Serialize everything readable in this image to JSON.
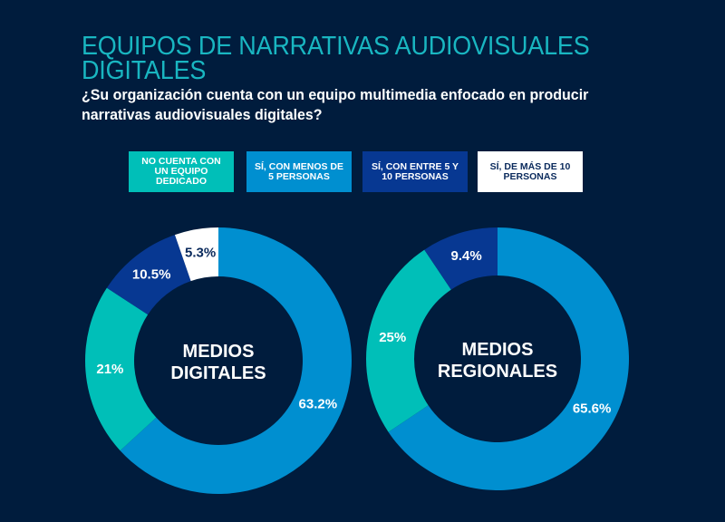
{
  "header": {
    "title": "EQUIPOS DE NARRATIVAS AUDIOVISUALES DIGITALES",
    "subtitle": "¿Su organización cuenta con un equipo multimedia enfocado en producir narrativas audiovisuales digitales?"
  },
  "colors": {
    "background": "#001c3d",
    "title": "#19b6c1",
    "no_team": "#00bfb8",
    "less_than_5": "#008fd0",
    "between_5_10": "#073892",
    "more_than_10": "#ffffff"
  },
  "legend": [
    {
      "key": "no_team",
      "label": "NO CUENTA CON UN EQUIPO DEDICADO",
      "text_color": "#ffffff"
    },
    {
      "key": "less_than_5",
      "label": "SÍ, CON MENOS DE 5 PERSONAS",
      "text_color": "#ffffff"
    },
    {
      "key": "between_5_10",
      "label": "SÍ, CON ENTRE 5 Y 10 PERSONAS",
      "text_color": "#ffffff"
    },
    {
      "key": "more_than_10",
      "label": "SÍ, DE MÁS DE 10 PERSONAS",
      "text_color": "#0a2a5c"
    }
  ],
  "chart_data": [
    {
      "type": "pie",
      "variant": "donut",
      "title": "MEDIOS DIGITALES",
      "center_label": [
        "MEDIOS",
        "DIGITALES"
      ],
      "start": "12 o'clock, clockwise",
      "slices": [
        {
          "key": "less_than_5",
          "label": "Sí, con menos de 5 personas",
          "value": 63.2,
          "display": "63.2%"
        },
        {
          "key": "no_team",
          "label": "No cuenta con un equipo dedicado",
          "value": 21,
          "display": "21%"
        },
        {
          "key": "between_5_10",
          "label": "Sí, con entre 5 y 10 personas",
          "value": 10.5,
          "display": "10.5%"
        },
        {
          "key": "more_than_10",
          "label": "Sí, de más de 10 personas",
          "value": 5.3,
          "display": "5.3%"
        }
      ]
    },
    {
      "type": "pie",
      "variant": "donut",
      "title": "MEDIOS REGIONALES",
      "center_label": [
        "MEDIOS",
        "REGIONALES"
      ],
      "start": "12 o'clock, clockwise",
      "slices": [
        {
          "key": "less_than_5",
          "label": "Sí, con menos de 5 personas",
          "value": 65.6,
          "display": "65.6%"
        },
        {
          "key": "no_team",
          "label": "No cuenta con un equipo dedicado",
          "value": 25,
          "display": "25%"
        },
        {
          "key": "between_5_10",
          "label": "Sí, con entre 5 y 10 personas",
          "value": 9.4,
          "display": "9.4%"
        }
      ]
    }
  ]
}
